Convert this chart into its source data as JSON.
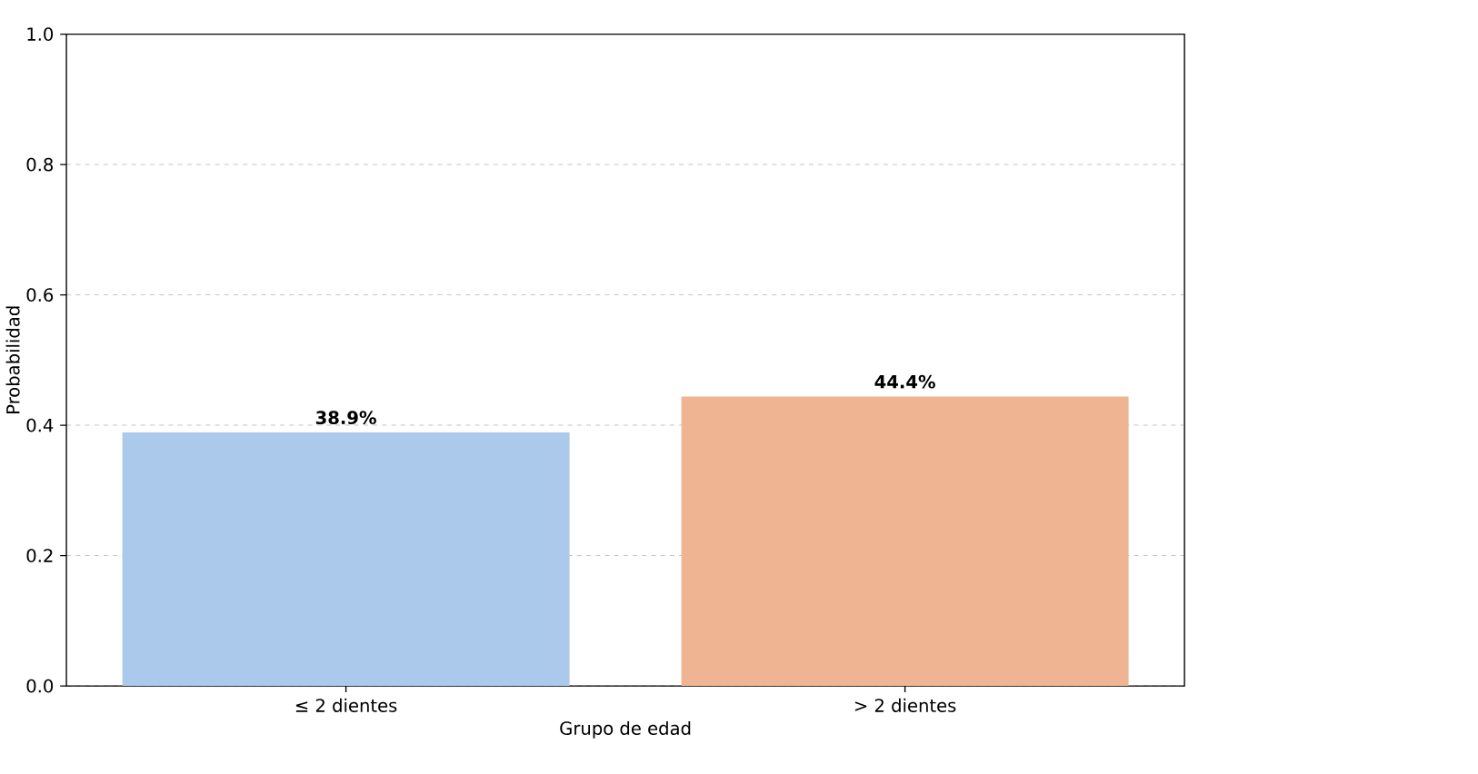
{
  "chart_data": {
    "type": "bar",
    "xlabel": "Grupo de edad",
    "ylabel": "Probabilidad",
    "categories": [
      "≤ 2 dientes",
      "> 2 dientes"
    ],
    "values": [
      0.389,
      0.444
    ],
    "colors": [
      "#abc9ea",
      "#efb592"
    ],
    "value_labels": [
      "**38.9%**",
      "**44.4%**"
    ],
    "ylim": [
      0.0,
      1.0
    ],
    "yticks": [
      {
        "value": 0.0,
        "label": "0.0"
      },
      {
        "value": 0.2,
        "label": "0.2"
      },
      {
        "value": 0.4,
        "label": "0.4"
      },
      {
        "value": 0.6,
        "label": "0.6"
      },
      {
        "value": 0.8,
        "label": "0.8"
      },
      {
        "value": 1.0,
        "label": "1.0"
      }
    ],
    "grid": "y"
  }
}
